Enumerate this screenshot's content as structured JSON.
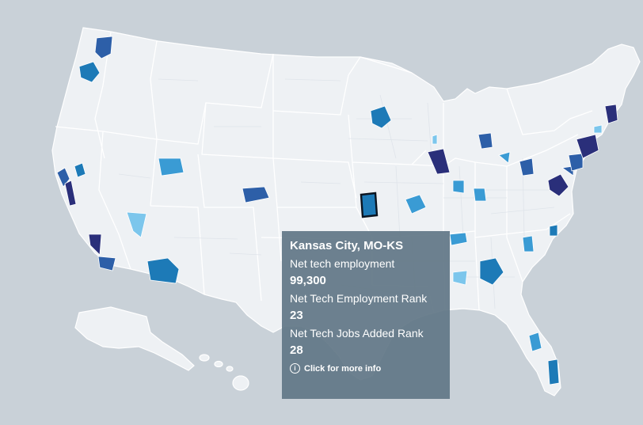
{
  "legend_colors": {
    "tier1": "#2a2f7a",
    "tier2": "#2d5fa8",
    "tier3": "#1d7ab7",
    "tier4": "#3a9bd4",
    "tier5": "#7cc6ec"
  },
  "tooltip": {
    "title": "Kansas City, MO-KS",
    "metric1_label": "Net tech employment",
    "metric1_value": "99,300",
    "metric2_label": "Net Tech Employment Rank",
    "metric2_value": "23",
    "metric3_label": "Net Tech Jobs Added Rank",
    "metric3_value": "28",
    "info_link": "Click for more info",
    "info_icon": "info-icon"
  }
}
